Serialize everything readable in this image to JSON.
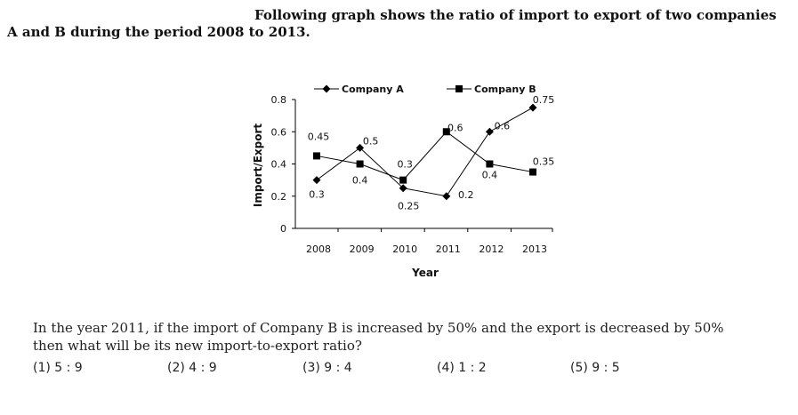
{
  "heading": {
    "line1": "Following graph shows the ratio of import to export of two companies",
    "line2": "A and B during the period 2008 to 2013."
  },
  "chart_data": {
    "type": "line",
    "title": "",
    "xlabel": "Year",
    "ylabel": "Import/Export",
    "categories": [
      "2008",
      "2009",
      "2010",
      "2011",
      "2012",
      "2013"
    ],
    "ylim": [
      0,
      0.8
    ],
    "yticks": [
      "0",
      "0.2",
      "0.4",
      "0.6",
      "0.8"
    ],
    "legend_position": "top",
    "grid": false,
    "series": [
      {
        "name": "Company A",
        "marker": "diamond",
        "color": "#000000",
        "values": [
          0.3,
          0.5,
          0.25,
          0.2,
          0.6,
          0.75
        ],
        "labels": [
          "0.3",
          "0.5",
          "0.25",
          "0.2",
          "0.6",
          "0.75"
        ]
      },
      {
        "name": "Company B",
        "marker": "square",
        "color": "#000000",
        "values": [
          0.45,
          0.4,
          0.3,
          0.6,
          0.4,
          0.35
        ],
        "labels": [
          "0.45",
          "0.4",
          "0.3",
          "0.6",
          "0.4",
          "0.35"
        ]
      }
    ]
  },
  "question": {
    "line1": "In the year 2011, if the import of Company B is increased by 50% and the export is decreased by 50%",
    "line2": "then what will be its new import-to-export ratio?",
    "options": [
      "(1)  5 : 9",
      "(2)  4 : 9",
      "(3)  9 : 4",
      "(4)  1 : 2",
      "(5)  9 : 5"
    ]
  }
}
